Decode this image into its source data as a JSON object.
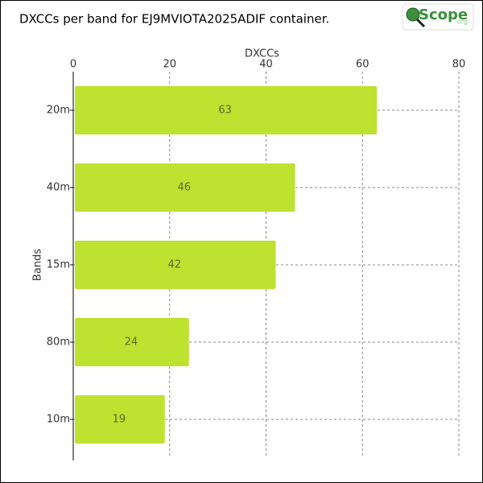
{
  "chart_data": {
    "type": "barh",
    "title": "DXCCs per band for EJ9MVIOTA2025ADIF container.",
    "x_label": "DXCCs",
    "y_label": "Bands",
    "categories": [
      "20m",
      "40m",
      "15m",
      "80m",
      "10m"
    ],
    "values": [
      63,
      46,
      42,
      24,
      19
    ],
    "color": "#bde22f",
    "xlim": [
      0,
      80
    ],
    "xticks": [
      0,
      20,
      40,
      60,
      80
    ],
    "grid": true
  },
  "logo": {
    "text": "Scope",
    "suffix": "org"
  }
}
